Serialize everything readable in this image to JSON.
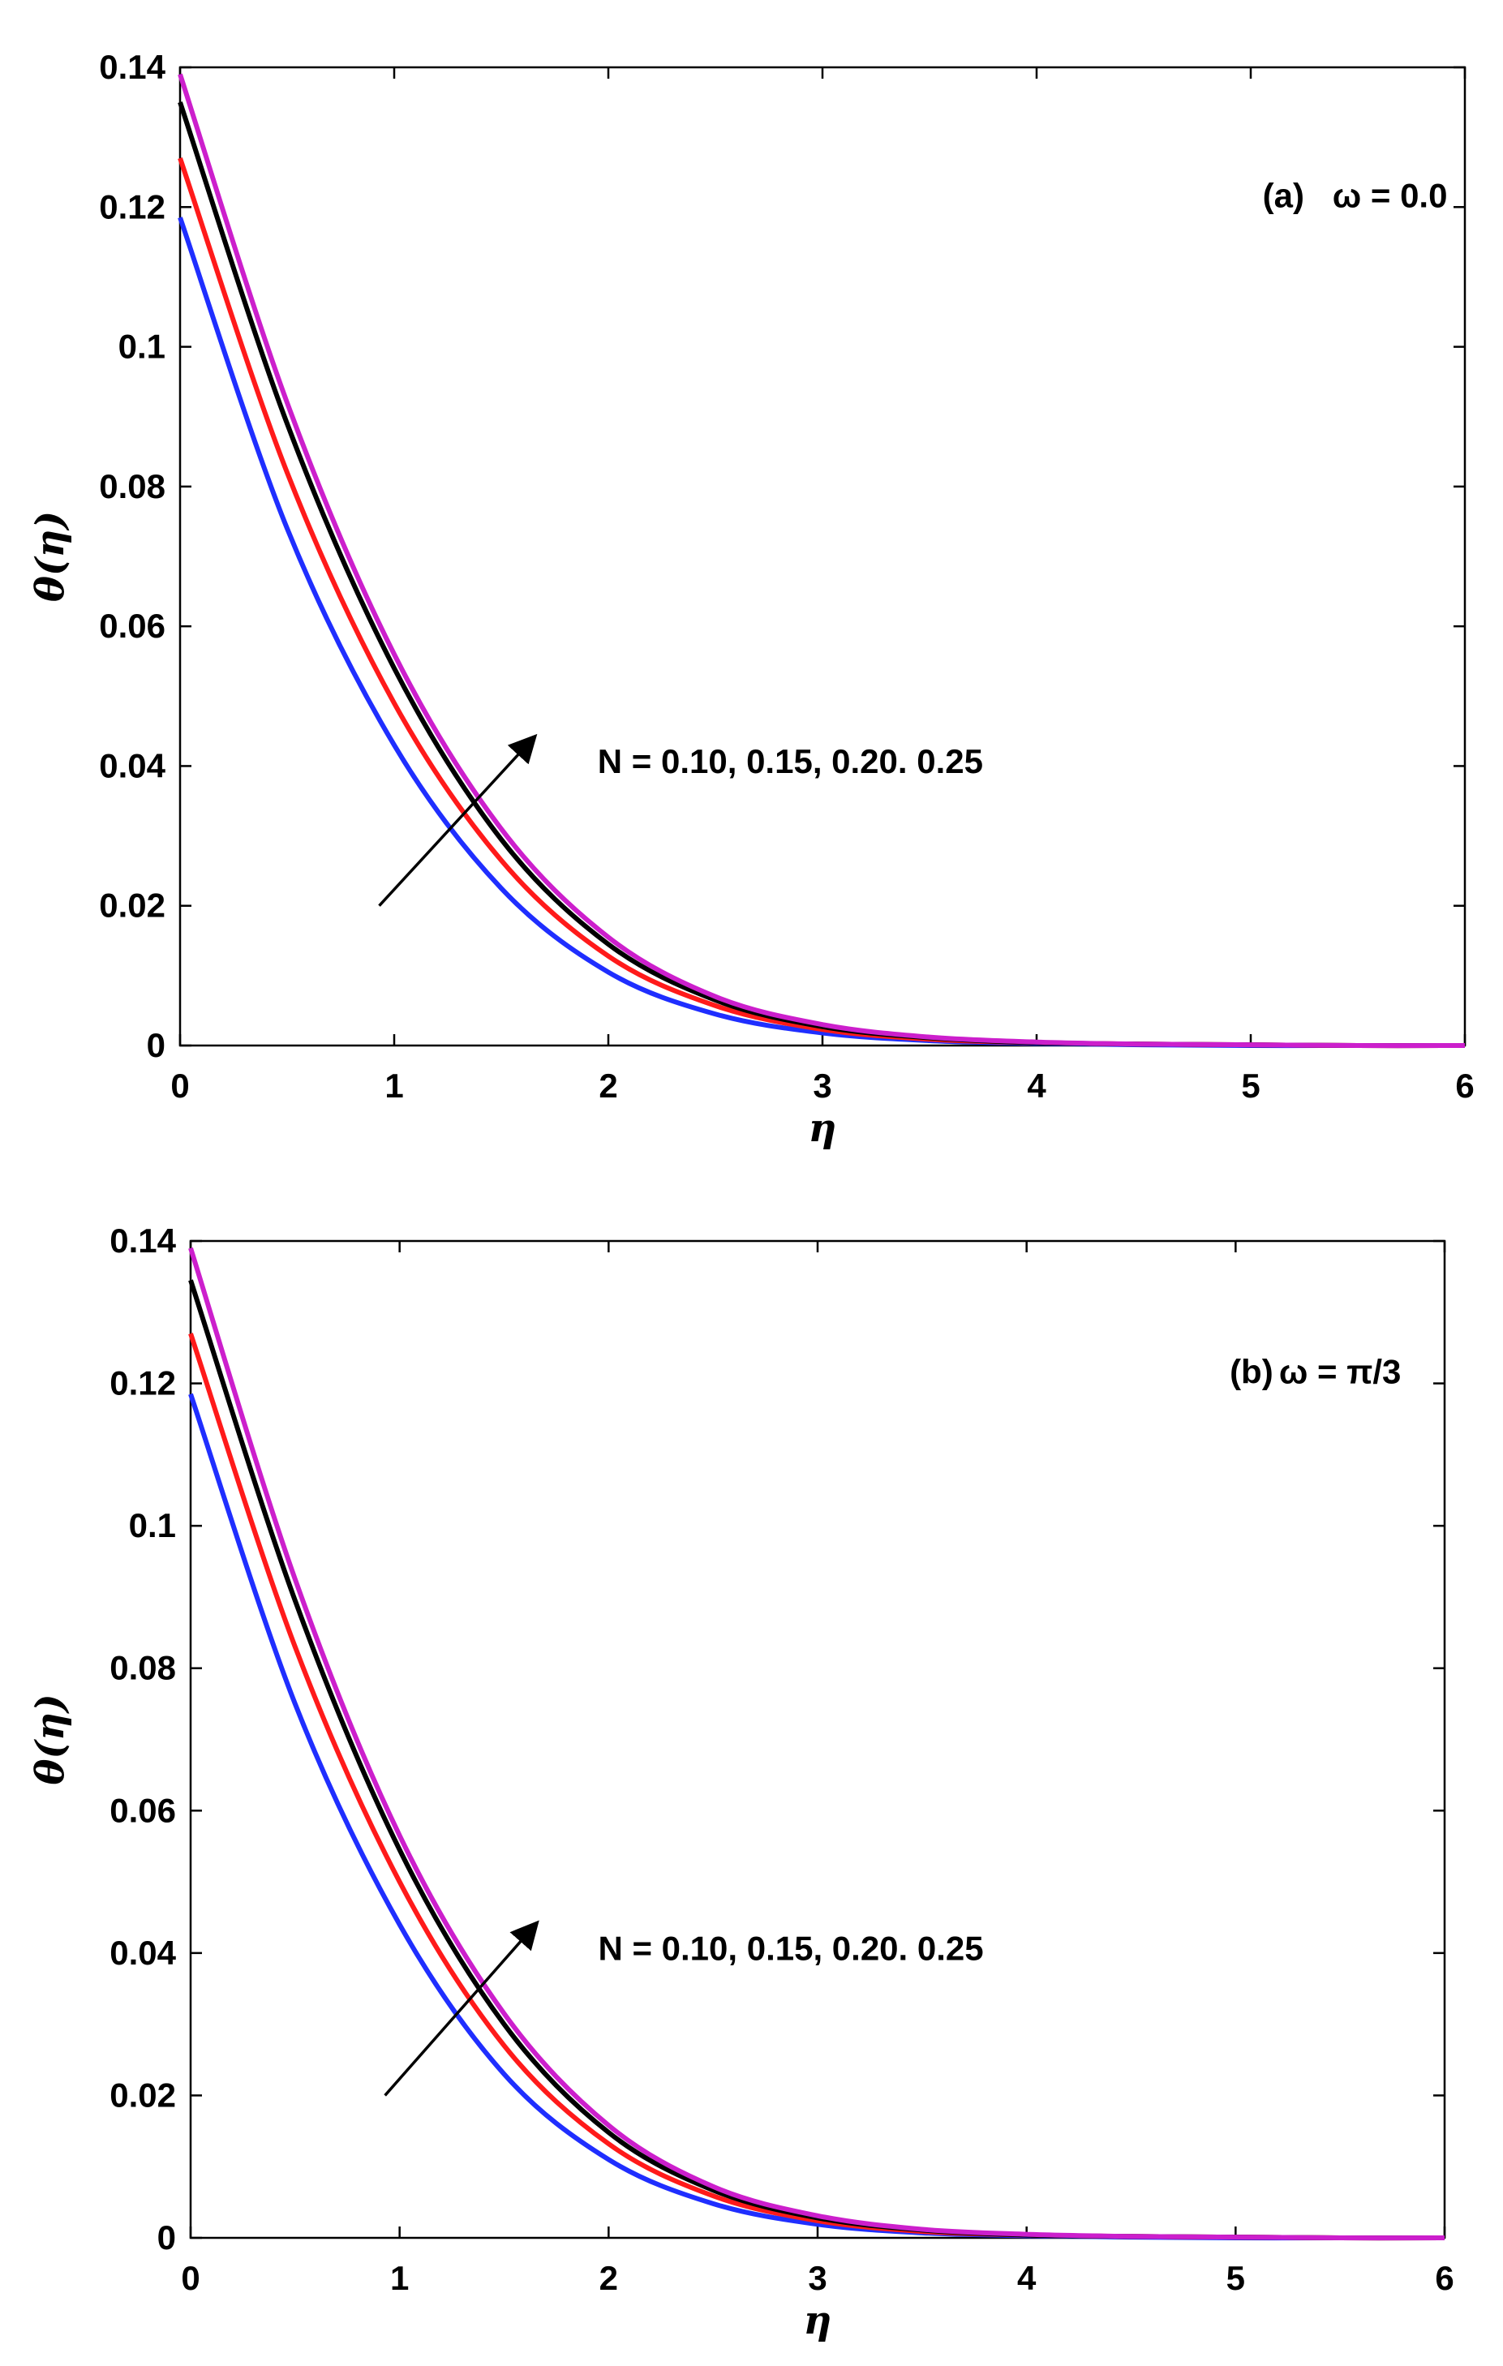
{
  "chart_data": [
    {
      "type": "line",
      "panel_label": "(a)",
      "parameter_text": "ω = 0.0",
      "annotation": "N =  0.10, 0.15, 0.20. 0.25",
      "xlabel": "η",
      "ylabel": "θ(η)",
      "xlim": [
        0,
        6
      ],
      "ylim": [
        0,
        0.14
      ],
      "xticks": [
        0,
        1,
        2,
        3,
        4,
        5,
        6
      ],
      "yticks": [
        0,
        0.02,
        0.04,
        0.06,
        0.08,
        0.1,
        0.12,
        0.14
      ],
      "ytick_labels": [
        "0",
        "0.02",
        "0.04",
        "0.06",
        "0.08",
        "0.1",
        "0.12",
        "0.14"
      ],
      "grid": false,
      "x": [
        0,
        0.5,
        1,
        1.5,
        2,
        2.5,
        3,
        3.5,
        4,
        4.5,
        5,
        5.5,
        6
      ],
      "series": [
        {
          "name": "N = 0.10",
          "color": "#1f2eff",
          "values": [
            0.1185,
            0.074,
            0.043,
            0.0225,
            0.0105,
            0.0045,
            0.0018,
            0.0007,
            0.0003,
            0.0001,
            0.0,
            0.0,
            0.0
          ]
        },
        {
          "name": "N = 0.15",
          "color": "#ff1a1a",
          "values": [
            0.127,
            0.082,
            0.049,
            0.0265,
            0.0128,
            0.0057,
            0.0023,
            0.0009,
            0.0004,
            0.0002,
            0.0001,
            0.0,
            0.0
          ]
        },
        {
          "name": "N = 0.20",
          "color": "#000000",
          "values": [
            0.135,
            0.089,
            0.054,
            0.0295,
            0.0145,
            0.0065,
            0.0027,
            0.0011,
            0.0004,
            0.0002,
            0.0001,
            0.0,
            0.0
          ]
        },
        {
          "name": "N = 0.25",
          "color": "#cc1fcc",
          "values": [
            0.139,
            0.092,
            0.056,
            0.031,
            0.0155,
            0.007,
            0.003,
            0.0012,
            0.0005,
            0.0002,
            0.0001,
            0.0,
            0.0
          ]
        }
      ],
      "arrow": {
        "from": [
          0.93,
          0.02
        ],
        "to": [
          1.65,
          0.044
        ]
      }
    },
    {
      "type": "line",
      "panel_label": "(b)",
      "parameter_text": "ω = π/3",
      "annotation": "N =  0.10, 0.15, 0.20. 0.25",
      "xlabel": "η",
      "ylabel": "θ(η)",
      "xlim": [
        0,
        6
      ],
      "ylim": [
        0,
        0.14
      ],
      "xticks": [
        0,
        1,
        2,
        3,
        4,
        5,
        6
      ],
      "yticks": [
        0,
        0.02,
        0.04,
        0.06,
        0.08,
        0.1,
        0.12,
        0.14
      ],
      "ytick_labels": [
        "0",
        "0.02",
        "0.04",
        "0.06",
        "0.08",
        "0.1",
        "0.12",
        "0.14"
      ],
      "grid": false,
      "x": [
        0,
        0.5,
        1,
        1.5,
        2,
        2.5,
        3,
        3.5,
        4,
        4.5,
        5,
        5.5,
        6
      ],
      "series": [
        {
          "name": "N = 0.10",
          "color": "#1f2eff",
          "values": [
            0.1185,
            0.075,
            0.044,
            0.023,
            0.011,
            0.0048,
            0.0019,
            0.0007,
            0.0003,
            0.0001,
            0.0,
            0.0,
            0.0
          ]
        },
        {
          "name": "N = 0.15",
          "color": "#ff1a1a",
          "values": [
            0.127,
            0.083,
            0.05,
            0.027,
            0.0132,
            0.0059,
            0.0024,
            0.0009,
            0.0004,
            0.0002,
            0.0001,
            0.0,
            0.0
          ]
        },
        {
          "name": "N = 0.20",
          "color": "#000000",
          "values": [
            0.1345,
            0.0895,
            0.0545,
            0.03,
            0.0148,
            0.0067,
            0.0028,
            0.0011,
            0.0004,
            0.0002,
            0.0001,
            0.0,
            0.0
          ]
        },
        {
          "name": "N = 0.25",
          "color": "#cc1fcc",
          "values": [
            0.139,
            0.0925,
            0.0565,
            0.0315,
            0.0158,
            0.0072,
            0.0031,
            0.0012,
            0.0005,
            0.0002,
            0.0001,
            0.0,
            0.0
          ]
        }
      ],
      "arrow": {
        "from": [
          0.93,
          0.02
        ],
        "to": [
          1.65,
          0.044
        ]
      }
    }
  ]
}
